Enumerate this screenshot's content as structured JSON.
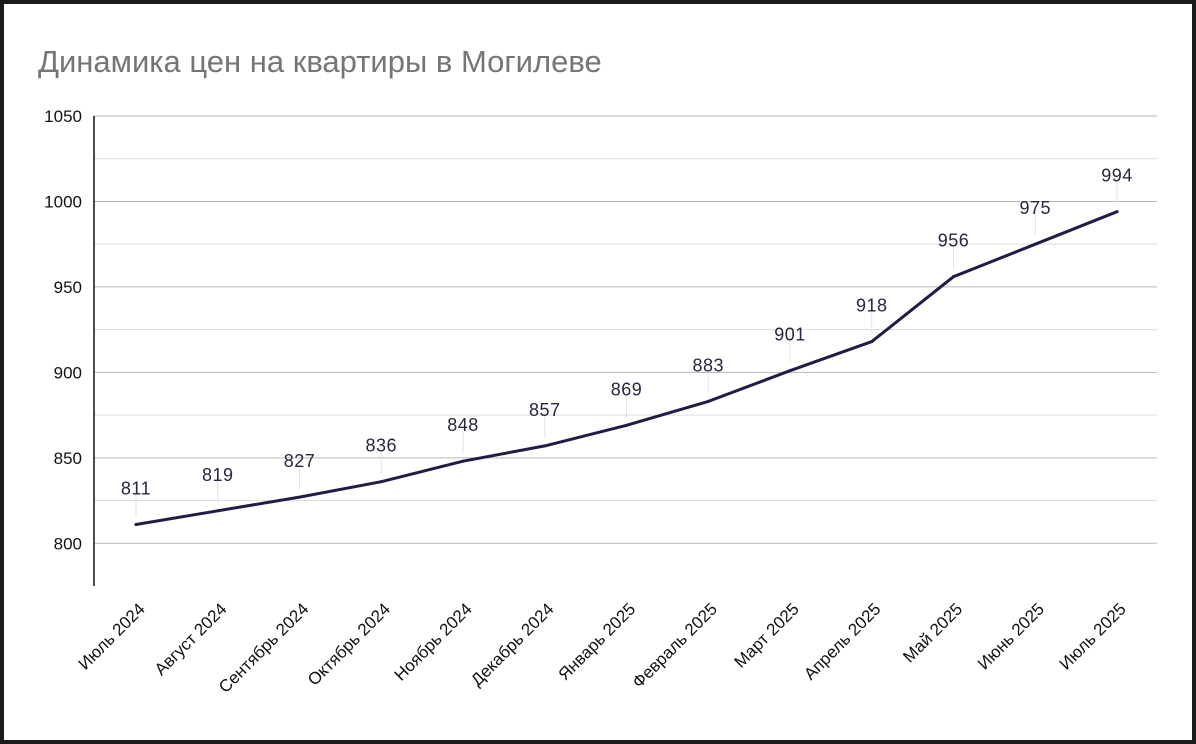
{
  "chart_data": {
    "type": "line",
    "title": "Динамика цен на квартиры в Могилеве",
    "xlabel": "",
    "ylabel": "",
    "categories": [
      "Июль 2024",
      "Август 2024",
      "Сентябрь 2024",
      "Октябрь 2024",
      "Ноябрь 2024",
      "Декабрь 2024",
      "Январь 2025",
      "Февраль 2025",
      "Март 2025",
      "Апрель 2025",
      "Май 2025",
      "Июнь 2025",
      "Июль 2025"
    ],
    "values": [
      811,
      819,
      827,
      836,
      848,
      857,
      869,
      883,
      901,
      918,
      956,
      975,
      994
    ],
    "ylim": [
      775,
      1050
    ],
    "yticks": [
      800,
      850,
      900,
      950,
      1000,
      1050
    ],
    "grid": true,
    "line_color": "#231a45",
    "data_labels": true
  }
}
